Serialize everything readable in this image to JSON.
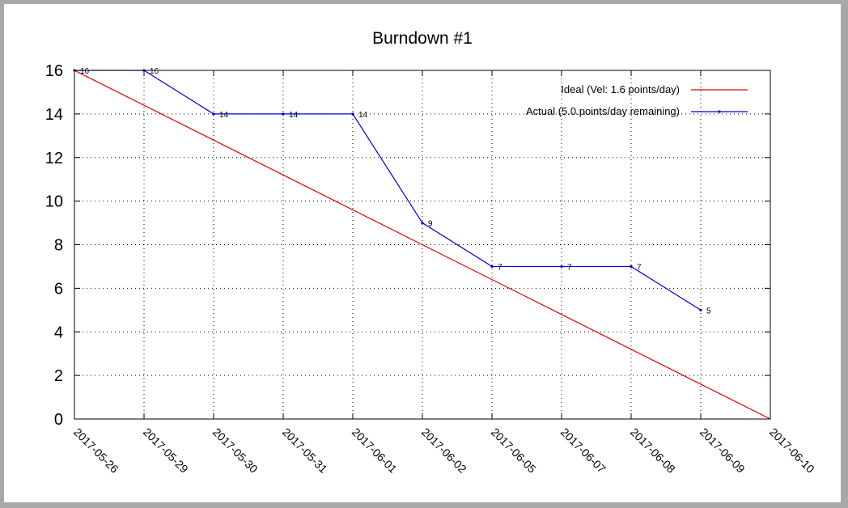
{
  "chart_data": {
    "type": "line",
    "title": "Burndown #1",
    "xlabel": "",
    "ylabel": "",
    "ylim": [
      0,
      16
    ],
    "yticks": [
      0,
      2,
      4,
      6,
      8,
      10,
      12,
      14,
      16
    ],
    "categories": [
      "2017-05-26",
      "2017-05-29",
      "2017-05-30",
      "2017-05-31",
      "2017-06-01",
      "2017-06-02",
      "2017-06-05",
      "2017-06-07",
      "2017-06-08",
      "2017-06-09",
      "2017-06-10"
    ],
    "grid": true,
    "grid_style": "dotted",
    "legend_position": "top-right",
    "series": [
      {
        "name": "Ideal (Vel: 1.6 points/day)",
        "color": "#e00000",
        "x": [
          "2017-05-26",
          "2017-06-10"
        ],
        "values": [
          16,
          0
        ],
        "markers": false,
        "labels": false
      },
      {
        "name": "Actual (5.0.points/day remaining)",
        "color": "#0000e0",
        "x": [
          "2017-05-26",
          "2017-05-29",
          "2017-05-30",
          "2017-05-31",
          "2017-06-01",
          "2017-06-02",
          "2017-06-05",
          "2017-06-07",
          "2017-06-08",
          "2017-06-09"
        ],
        "values": [
          16,
          16,
          14,
          14,
          14,
          9,
          7,
          7,
          7,
          5
        ],
        "markers": true,
        "labels": true
      }
    ]
  }
}
